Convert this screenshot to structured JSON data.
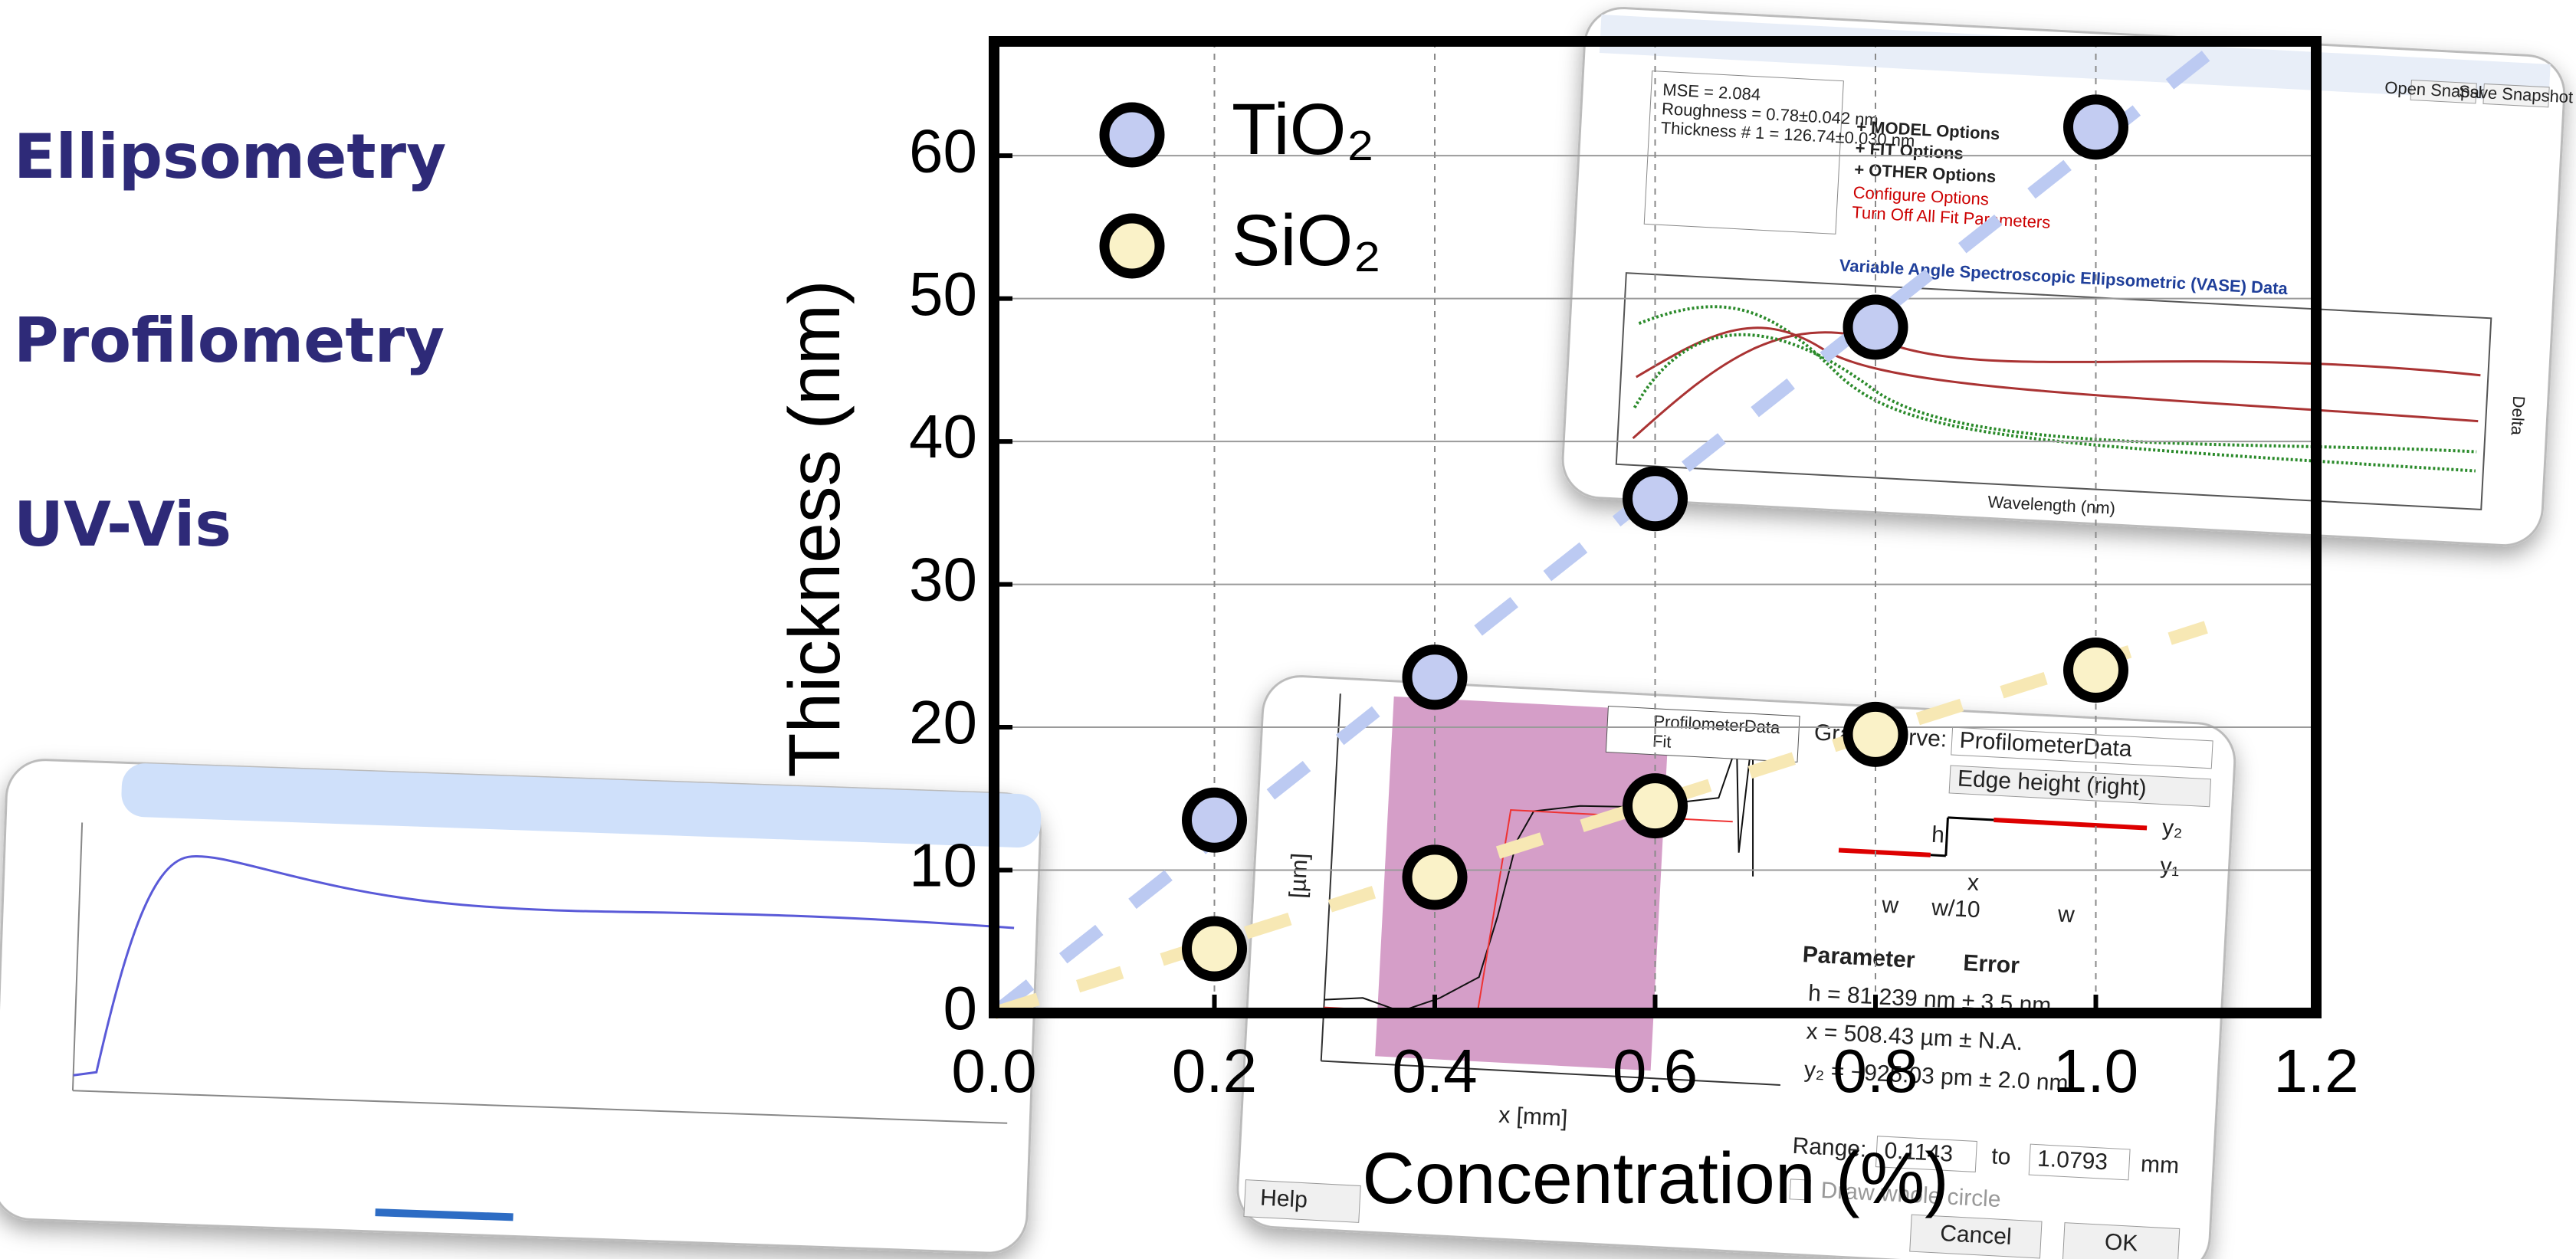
{
  "sidebar": {
    "labels": [
      "Ellipsometry",
      "Profilometry",
      "UV-Vis"
    ]
  },
  "screenshots": {
    "ellipsometry": {
      "title": "Variable Angle Spectroscopic Ellipsometric (VASE) Data",
      "x_label": "Wavelength (nm)",
      "y2_label": "Delta",
      "model_lines": [
        "MSE = 2.084",
        "Roughness = 0.78±0.042 nm",
        "Thickness # 1 = 126.74±0.030 nm"
      ],
      "options": [
        "+ MODEL Options",
        "+ FIT Options",
        "+ OTHER Options"
      ],
      "links": [
        "Configure Options",
        "Turn Off All Fit Parameters"
      ],
      "buttons": [
        "Open Snapshot",
        "Save Snapshot"
      ]
    },
    "profilometry": {
      "legend": [
        "ProfilometerData",
        "Fit"
      ],
      "graph_curve_label": "Graph curve:",
      "graph_curve": "ProfilometerData",
      "mode": "Edge height (right)",
      "x_label": "x [mm]",
      "y_label": "[µm]",
      "diagram": [
        "h",
        "x",
        "w",
        "w/10",
        "w",
        "y₂",
        "y₁"
      ],
      "table_header": [
        "Parameter",
        "Error"
      ],
      "rows": [
        "h = 81.239 nm ± 3.5 nm",
        "x = 508.43 µm ± N.A.",
        "y₂ = −925.03 pm ± 2.0 nm"
      ],
      "range_label": "Range:",
      "range": [
        "0.1143",
        "1.0793"
      ],
      "range_to": "to",
      "range_unit": "mm",
      "checkbox": "Draw whole circle",
      "buttons": [
        "Help",
        "Cancel",
        "OK"
      ]
    }
  },
  "chart_data": {
    "type": "scatter",
    "x_label": "Concentration (%)",
    "y_label": "Thickness (nm)",
    "xlim": [
      0,
      1.2
    ],
    "ylim": [
      0,
      68
    ],
    "xticks": [
      {
        "value": 0,
        "label": "0.0"
      },
      0.2,
      0.4,
      0.6,
      0.8,
      {
        "value": 1,
        "label": "1.0"
      },
      1.2
    ],
    "yticks": [
      0,
      10,
      20,
      30,
      40,
      50,
      60
    ],
    "grid": true,
    "legend": "upper left",
    "series": [
      {
        "name": "TiO₂",
        "color": "#c3ccf2",
        "x": [
          0.2,
          0.4,
          0.6,
          0.8,
          1.0
        ],
        "values": [
          13.5,
          23.5,
          36,
          48,
          62
        ]
      },
      {
        "name": "SiO₂",
        "color": "#faf2c8",
        "x": [
          0.2,
          0.4,
          0.6,
          0.8,
          1.0
        ],
        "values": [
          4.5,
          9.5,
          14.5,
          19.5,
          24
        ]
      }
    ],
    "trendlines": [
      {
        "color": "#bccaf2",
        "x": [
          0,
          1.1
        ],
        "values": [
          0,
          67
        ]
      },
      {
        "color": "#f7e8b4",
        "x": [
          0,
          1.1
        ],
        "values": [
          0,
          27
        ]
      }
    ]
  }
}
